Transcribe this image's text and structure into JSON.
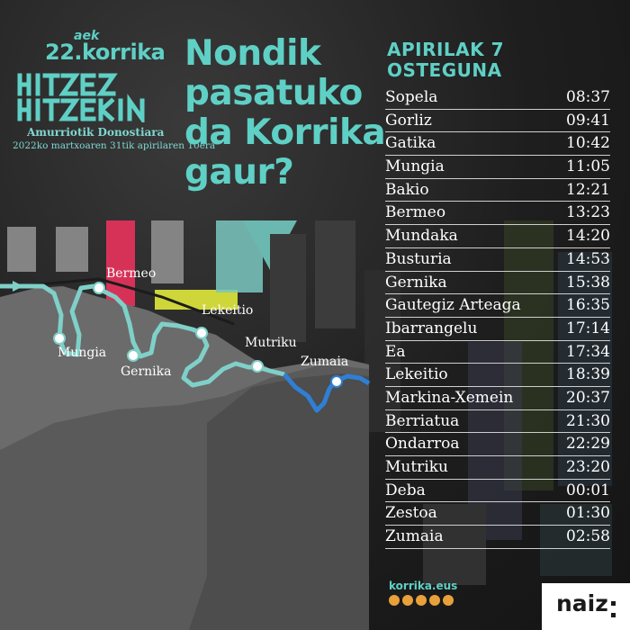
{
  "header": {
    "aek": "aek",
    "korrika": "22.korrika",
    "logo_text": "HITZEZ HITZEKIN",
    "tagline": "Amurriotik Donostiara",
    "dates": "2022ko martxoaren 31tik apirilaren 10era"
  },
  "question": [
    "Nondik",
    "pasatuko",
    "da Korrika",
    "gaur?"
  ],
  "day": {
    "date": "APIRILAK 7",
    "weekday": "OSTEGUNA"
  },
  "schedule": [
    {
      "place": "Sopela",
      "time": "08:37"
    },
    {
      "place": "Gorliz",
      "time": "09:41"
    },
    {
      "place": "Gatika",
      "time": "10:42"
    },
    {
      "place": "Mungia",
      "time": "11:05"
    },
    {
      "place": "Bakio",
      "time": "12:21"
    },
    {
      "place": "Bermeo",
      "time": "13:23"
    },
    {
      "place": "Mundaka",
      "time": "14:20"
    },
    {
      "place": "Busturia",
      "time": "14:53"
    },
    {
      "place": "Gernika",
      "time": "15:38"
    },
    {
      "place": "Gautegiz Arteaga",
      "time": "16:35"
    },
    {
      "place": "Ibarrangelu",
      "time": "17:14"
    },
    {
      "place": "Ea",
      "time": "17:34"
    },
    {
      "place": "Lekeitio",
      "time": "18:39"
    },
    {
      "place": "Markina-Xemein",
      "time": "20:37"
    },
    {
      "place": "Berriatua",
      "time": "21:30"
    },
    {
      "place": "Ondarroa",
      "time": "22:29"
    },
    {
      "place": "Mutriku",
      "time": "23:20"
    },
    {
      "place": "Deba",
      "time": "00:01"
    },
    {
      "place": "Zestoa",
      "time": "01:30"
    },
    {
      "place": "Zumaia",
      "time": "02:58"
    }
  ],
  "map_labels": {
    "bermeo": "Bermeo",
    "lekeitio": "Lekeitio",
    "mungia": "Mungia",
    "gernika": "Gernika",
    "mutriku": "Mutriku",
    "zumaia": "Zumaia"
  },
  "footer": {
    "url": "korrika.eus",
    "brand": "naiz"
  },
  "colors": {
    "teal": "#5fd0c5",
    "route_teal": "#7fd0c8",
    "route_blue": "#2f7fd6",
    "land": "#6b6b6b",
    "land_dark": "#4d4d4d"
  },
  "icons": [
    "youtube-icon",
    "facebook-icon",
    "twitter-icon",
    "instagram-icon",
    "telegram-icon"
  ]
}
